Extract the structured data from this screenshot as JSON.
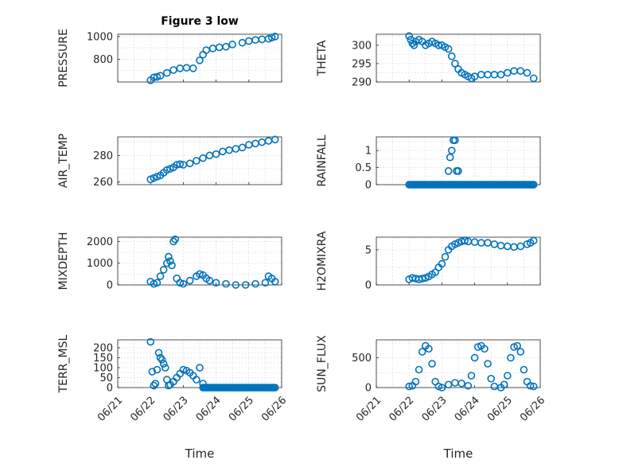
{
  "figure": {
    "title": "Figure 3 low",
    "xlabel": "Time"
  },
  "chart_data": [
    {
      "type": "scatter",
      "title": "Figure 3 low",
      "ylabel": "PRESSURE",
      "ylim": [
        600,
        1020
      ],
      "yticks": [
        800,
        1000
      ],
      "x": [
        22.0,
        22.1,
        22.2,
        22.3,
        22.5,
        22.7,
        22.9,
        23.1,
        23.3,
        23.5,
        23.6,
        23.7,
        23.9,
        24.1,
        24.3,
        24.5,
        24.8,
        25.0,
        25.2,
        25.4,
        25.6,
        25.7,
        25.8
      ],
      "values": [
        615,
        640,
        645,
        655,
        680,
        705,
        720,
        725,
        720,
        790,
        840,
        880,
        895,
        905,
        910,
        930,
        945,
        960,
        970,
        975,
        980,
        990,
        1000
      ],
      "xlim": [
        21,
        26
      ],
      "xticks": [
        "06/21",
        "06/22",
        "06/23",
        "06/24",
        "06/25",
        "06/26"
      ]
    },
    {
      "type": "scatter",
      "ylabel": "THETA",
      "ylim": [
        290,
        303
      ],
      "yticks": [
        290,
        295,
        300
      ],
      "x": [
        22.0,
        22.05,
        22.1,
        22.15,
        22.2,
        22.3,
        22.4,
        22.5,
        22.6,
        22.7,
        22.8,
        22.9,
        23.0,
        23.1,
        23.2,
        23.3,
        23.4,
        23.5,
        23.6,
        23.7,
        23.8,
        23.9,
        24.0,
        24.2,
        24.4,
        24.6,
        24.8,
        25.0,
        25.2,
        25.4,
        25.6,
        25.8
      ],
      "values": [
        302.5,
        301.5,
        300.5,
        300,
        301,
        301.5,
        301,
        300,
        300.5,
        301,
        300.5,
        300,
        300,
        299.5,
        299,
        297,
        295,
        293.5,
        292.5,
        292,
        291.5,
        291,
        291.5,
        292,
        292,
        292,
        292,
        292.5,
        293,
        293,
        292.5,
        291
      ],
      "xlim": [
        21,
        26
      ],
      "xticks": [
        "06/21",
        "06/22",
        "06/23",
        "06/24",
        "06/25",
        "06/26"
      ]
    },
    {
      "type": "scatter",
      "ylabel": "AIR_TEMP",
      "ylim": [
        258,
        294
      ],
      "yticks": [
        260,
        280
      ],
      "x": [
        22.0,
        22.1,
        22.2,
        22.3,
        22.4,
        22.5,
        22.6,
        22.7,
        22.8,
        22.9,
        23.0,
        23.2,
        23.4,
        23.6,
        23.8,
        24.0,
        24.2,
        24.4,
        24.6,
        24.8,
        25.0,
        25.2,
        25.4,
        25.6,
        25.8
      ],
      "values": [
        262,
        263,
        264,
        265,
        267,
        269,
        270,
        271,
        273,
        273.5,
        273,
        274,
        276,
        278,
        280,
        281,
        283,
        284,
        285,
        286,
        288,
        289,
        290,
        291,
        292
      ],
      "xlim": [
        21,
        26
      ],
      "xticks": [
        "06/21",
        "06/22",
        "06/23",
        "06/24",
        "06/25",
        "06/26"
      ]
    },
    {
      "type": "scatter",
      "ylabel": "RAINFALL",
      "ylim": [
        0,
        1.4
      ],
      "yticks": [
        0,
        0.5,
        1
      ],
      "x": [
        23.2,
        23.25,
        23.3,
        23.35,
        23.4,
        23.45,
        23.5
      ],
      "values": [
        0.4,
        0.8,
        1.0,
        1.3,
        1.3,
        0.4,
        0.4
      ],
      "baseline": {
        "from": 22.0,
        "to": 25.8,
        "value": 0
      },
      "xlim": [
        21,
        26
      ],
      "xticks": [
        "06/21",
        "06/22",
        "06/23",
        "06/24",
        "06/25",
        "06/26"
      ]
    },
    {
      "type": "scatter",
      "ylabel": "MIXDEPTH",
      "ylim": [
        0,
        2200
      ],
      "yticks": [
        0,
        1000,
        2000
      ],
      "x": [
        22.0,
        22.1,
        22.2,
        22.3,
        22.4,
        22.5,
        22.55,
        22.6,
        22.65,
        22.7,
        22.75,
        22.8,
        22.9,
        23.0,
        23.2,
        23.4,
        23.5,
        23.6,
        23.7,
        23.8,
        24.0,
        24.3,
        24.6,
        24.9,
        25.2,
        25.5,
        25.6,
        25.7,
        25.8
      ],
      "values": [
        150,
        50,
        100,
        400,
        700,
        1000,
        1300,
        1100,
        900,
        2000,
        2100,
        300,
        100,
        50,
        200,
        400,
        500,
        450,
        300,
        200,
        100,
        50,
        0,
        0,
        50,
        100,
        400,
        300,
        150
      ],
      "xlim": [
        21,
        26
      ],
      "xticks": [
        "06/21",
        "06/22",
        "06/23",
        "06/24",
        "06/25",
        "06/26"
      ]
    },
    {
      "type": "scatter",
      "ylabel": "H2OMIXRA",
      "ylim": [
        0,
        6.8
      ],
      "yticks": [
        0,
        5
      ],
      "x": [
        22.0,
        22.1,
        22.2,
        22.3,
        22.4,
        22.5,
        22.6,
        22.7,
        22.8,
        22.9,
        23.0,
        23.1,
        23.2,
        23.3,
        23.4,
        23.5,
        23.6,
        23.7,
        23.8,
        24.0,
        24.2,
        24.4,
        24.6,
        24.8,
        25.0,
        25.2,
        25.4,
        25.6,
        25.7,
        25.8
      ],
      "values": [
        0.8,
        1.0,
        0.9,
        0.8,
        0.9,
        1.0,
        1.2,
        1.5,
        1.8,
        2.5,
        3.0,
        4.0,
        5.0,
        5.5,
        5.8,
        6.0,
        6.2,
        6.3,
        6.2,
        6.1,
        6.0,
        6.0,
        5.8,
        5.6,
        5.5,
        5.4,
        5.5,
        5.8,
        6.0,
        6.3
      ],
      "xlim": [
        21,
        26
      ],
      "xticks": [
        "06/21",
        "06/22",
        "06/23",
        "06/24",
        "06/25",
        "06/26"
      ]
    },
    {
      "type": "scatter",
      "ylabel": "TERR_MSL",
      "ylim": [
        0,
        240
      ],
      "yticks": [
        0,
        50,
        100,
        150,
        200
      ],
      "x": [
        22.0,
        22.05,
        22.1,
        22.15,
        22.2,
        22.25,
        22.3,
        22.35,
        22.4,
        22.45,
        22.5,
        22.55,
        22.6,
        22.7,
        22.8,
        22.9,
        23.0,
        23.1,
        23.2,
        23.3,
        23.4,
        23.5,
        23.6
      ],
      "values": [
        230,
        80,
        10,
        20,
        90,
        175,
        150,
        140,
        120,
        100,
        40,
        10,
        15,
        30,
        50,
        70,
        90,
        85,
        75,
        60,
        40,
        100,
        20
      ],
      "baseline": {
        "from": 23.6,
        "to": 25.8,
        "value": 0
      },
      "xlim": [
        21,
        26
      ],
      "xticks": [
        "06/21",
        "06/22",
        "06/23",
        "06/24",
        "06/25",
        "06/26"
      ]
    },
    {
      "type": "scatter",
      "ylabel": "SUN_FLUX",
      "ylim": [
        0,
        800
      ],
      "yticks": [
        0,
        500
      ],
      "x": [
        22.0,
        22.1,
        22.2,
        22.3,
        22.4,
        22.5,
        22.6,
        22.7,
        22.8,
        22.9,
        23.0,
        23.2,
        23.4,
        23.6,
        23.8,
        23.9,
        24.0,
        24.1,
        24.2,
        24.3,
        24.4,
        24.5,
        24.6,
        24.8,
        24.9,
        25.0,
        25.1,
        25.2,
        25.3,
        25.4,
        25.5,
        25.6,
        25.7,
        25.8
      ],
      "values": [
        20,
        30,
        100,
        300,
        600,
        700,
        650,
        400,
        100,
        20,
        0,
        50,
        80,
        70,
        30,
        200,
        500,
        680,
        700,
        650,
        400,
        150,
        20,
        0,
        50,
        200,
        500,
        680,
        700,
        600,
        300,
        100,
        30,
        20
      ],
      "xlim": [
        21,
        26
      ],
      "xticks": [
        "06/21",
        "06/22",
        "06/23",
        "06/24",
        "06/25",
        "06/26"
      ]
    }
  ]
}
